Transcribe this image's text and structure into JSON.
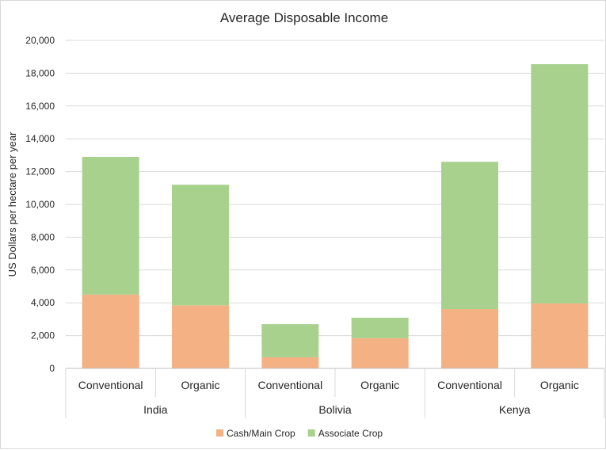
{
  "chart_data": {
    "type": "bar",
    "stacked": true,
    "title": "Average Disposable Income",
    "xlabel": "",
    "ylabel": "US Dollars per hectare per year",
    "ylim": [
      0,
      20000
    ],
    "yticks": [
      "0",
      "2,000",
      "4,000",
      "6,000",
      "8,000",
      "10,000",
      "12,000",
      "14,000",
      "16,000",
      "18,000",
      "20,000"
    ],
    "ytick_values": [
      0,
      2000,
      4000,
      6000,
      8000,
      10000,
      12000,
      14000,
      16000,
      18000,
      20000
    ],
    "grid": true,
    "legend_position": "bottom",
    "groups": [
      "India",
      "Bolivia",
      "Kenya"
    ],
    "categories": [
      "Conventional",
      "Organic",
      "Conventional",
      "Organic",
      "Conventional",
      "Organic"
    ],
    "series": [
      {
        "name": "Cash/Main Crop",
        "color": "#f4b183",
        "values": [
          4500,
          3850,
          680,
          1840,
          3620,
          3960
        ]
      },
      {
        "name": "Associate Crop",
        "color": "#a9d18e",
        "values": [
          8400,
          7350,
          2020,
          1250,
          8980,
          14590
        ]
      }
    ]
  }
}
